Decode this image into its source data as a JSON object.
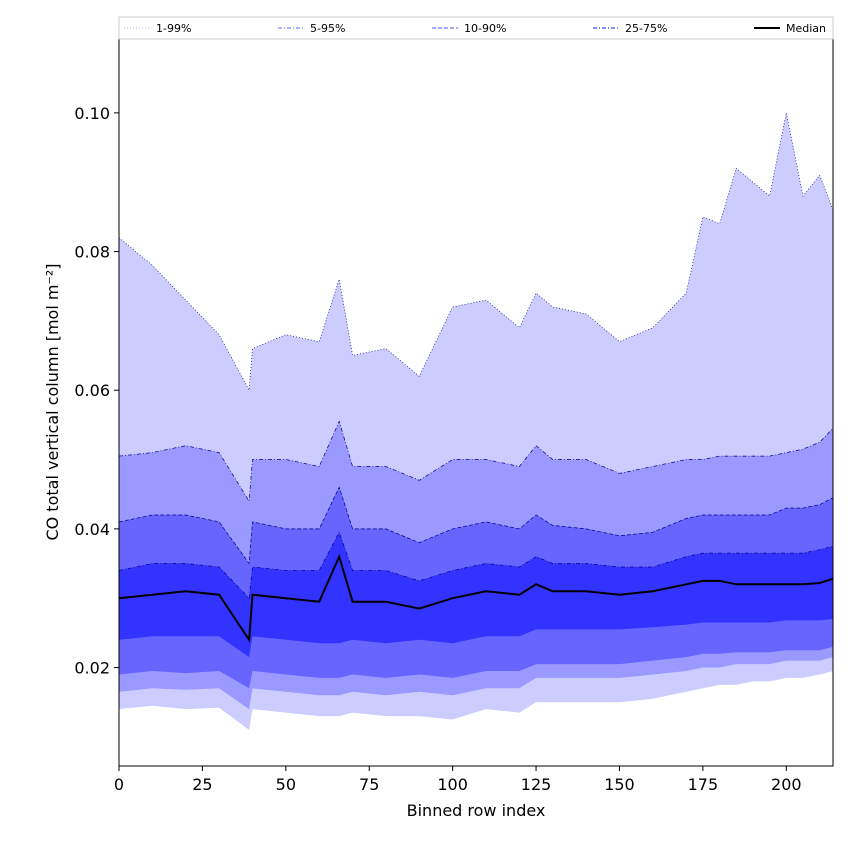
{
  "chart_data": {
    "type": "area",
    "title": "",
    "xlabel": "Binned row index",
    "ylabel": "CO total vertical column [mol m⁻²]",
    "xlim": [
      0,
      214
    ],
    "ylim": [
      0.0058,
      0.1108
    ],
    "x_ticks": [
      0,
      25,
      50,
      75,
      100,
      125,
      150,
      175,
      200
    ],
    "y_ticks": [
      0.02,
      0.04,
      0.06,
      0.08,
      0.1
    ],
    "y_tick_labels": [
      "0.02",
      "0.04",
      "0.06",
      "0.08",
      "0.10"
    ],
    "grid": false,
    "legend_position": "top",
    "x": [
      0,
      10,
      20,
      30,
      39,
      40,
      50,
      60,
      66,
      70,
      80,
      90,
      100,
      110,
      120,
      125,
      130,
      140,
      150,
      160,
      170,
      175,
      180,
      185,
      190,
      195,
      200,
      205,
      210,
      214
    ],
    "series": [
      {
        "name": "1-99%",
        "style": "dotted",
        "color": "#ccccff",
        "lower": [
          0.014,
          0.0145,
          0.014,
          0.0142,
          0.011,
          0.014,
          0.0135,
          0.013,
          0.013,
          0.0135,
          0.013,
          0.013,
          0.0125,
          0.014,
          0.0135,
          0.015,
          0.015,
          0.015,
          0.015,
          0.0155,
          0.0165,
          0.017,
          0.0175,
          0.0175,
          0.018,
          0.018,
          0.0185,
          0.0185,
          0.019,
          0.0195
        ],
        "upper": [
          0.082,
          0.078,
          0.073,
          0.068,
          0.06,
          0.066,
          0.068,
          0.067,
          0.076,
          0.065,
          0.066,
          0.062,
          0.072,
          0.073,
          0.069,
          0.074,
          0.072,
          0.071,
          0.067,
          0.069,
          0.074,
          0.085,
          0.084,
          0.092,
          0.09,
          0.088,
          0.1,
          0.088,
          0.091,
          0.086
        ]
      },
      {
        "name": "5-95%",
        "style": "dashdot",
        "color": "#9999ff",
        "lower": [
          0.0165,
          0.017,
          0.0168,
          0.017,
          0.014,
          0.017,
          0.0165,
          0.016,
          0.016,
          0.0165,
          0.016,
          0.0165,
          0.016,
          0.017,
          0.017,
          0.0185,
          0.0185,
          0.0185,
          0.0185,
          0.019,
          0.0195,
          0.02,
          0.02,
          0.0205,
          0.0205,
          0.0205,
          0.021,
          0.021,
          0.021,
          0.0215
        ],
        "upper": [
          0.0505,
          0.051,
          0.052,
          0.051,
          0.044,
          0.05,
          0.05,
          0.049,
          0.0555,
          0.049,
          0.049,
          0.047,
          0.05,
          0.05,
          0.049,
          0.052,
          0.05,
          0.05,
          0.048,
          0.049,
          0.05,
          0.05,
          0.0505,
          0.0505,
          0.0505,
          0.0505,
          0.051,
          0.0515,
          0.0525,
          0.0545
        ]
      },
      {
        "name": "10-90%",
        "style": "dashed",
        "color": "#6666ff",
        "lower": [
          0.019,
          0.0195,
          0.0192,
          0.0195,
          0.017,
          0.0195,
          0.019,
          0.0185,
          0.0185,
          0.019,
          0.0185,
          0.019,
          0.0185,
          0.0195,
          0.0195,
          0.0205,
          0.0205,
          0.0205,
          0.0205,
          0.021,
          0.0215,
          0.022,
          0.022,
          0.0222,
          0.0222,
          0.0222,
          0.0225,
          0.0225,
          0.0225,
          0.023
        ],
        "upper": [
          0.041,
          0.042,
          0.042,
          0.041,
          0.035,
          0.041,
          0.04,
          0.04,
          0.046,
          0.04,
          0.04,
          0.038,
          0.04,
          0.041,
          0.04,
          0.042,
          0.0405,
          0.04,
          0.039,
          0.0395,
          0.0415,
          0.042,
          0.042,
          0.042,
          0.042,
          0.042,
          0.043,
          0.043,
          0.0435,
          0.0445
        ]
      },
      {
        "name": "25-75%",
        "style": "dashdot",
        "color": "#3333ff",
        "lower": [
          0.024,
          0.0245,
          0.0245,
          0.0245,
          0.0215,
          0.0245,
          0.024,
          0.0235,
          0.0235,
          0.024,
          0.0235,
          0.024,
          0.0235,
          0.0245,
          0.0245,
          0.0255,
          0.0255,
          0.0255,
          0.0255,
          0.0258,
          0.0262,
          0.0265,
          0.0265,
          0.0265,
          0.0265,
          0.0265,
          0.0268,
          0.0268,
          0.0268,
          0.027
        ],
        "upper": [
          0.034,
          0.035,
          0.035,
          0.0345,
          0.03,
          0.0345,
          0.034,
          0.034,
          0.0395,
          0.034,
          0.034,
          0.0325,
          0.034,
          0.035,
          0.0345,
          0.036,
          0.035,
          0.035,
          0.0345,
          0.0345,
          0.036,
          0.0365,
          0.0365,
          0.0365,
          0.0365,
          0.0365,
          0.0365,
          0.0365,
          0.037,
          0.0375
        ]
      },
      {
        "name": "Median",
        "style": "solid",
        "color": "#000000",
        "values": [
          0.03,
          0.0305,
          0.031,
          0.0305,
          0.024,
          0.0305,
          0.03,
          0.0295,
          0.036,
          0.0295,
          0.0295,
          0.0285,
          0.03,
          0.031,
          0.0305,
          0.032,
          0.031,
          0.031,
          0.0305,
          0.031,
          0.032,
          0.0325,
          0.0325,
          0.032,
          0.032,
          0.032,
          0.032,
          0.032,
          0.0322,
          0.0328
        ]
      }
    ]
  }
}
